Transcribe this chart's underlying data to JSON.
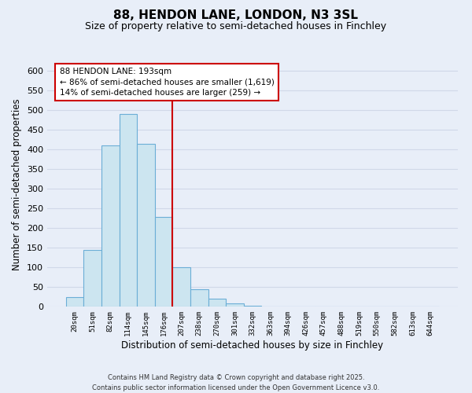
{
  "title": "88, HENDON LANE, LONDON, N3 3SL",
  "subtitle": "Size of property relative to semi-detached houses in Finchley",
  "xlabel": "Distribution of semi-detached houses by size in Finchley",
  "ylabel": "Number of semi-detached properties",
  "bar_labels": [
    "20sqm",
    "51sqm",
    "82sqm",
    "114sqm",
    "145sqm",
    "176sqm",
    "207sqm",
    "238sqm",
    "270sqm",
    "301sqm",
    "332sqm",
    "363sqm",
    "394sqm",
    "426sqm",
    "457sqm",
    "488sqm",
    "519sqm",
    "550sqm",
    "582sqm",
    "613sqm",
    "644sqm"
  ],
  "bar_heights": [
    25,
    145,
    410,
    490,
    415,
    228,
    100,
    45,
    20,
    8,
    2,
    0,
    0,
    0,
    0,
    0,
    0,
    0,
    0,
    0,
    1
  ],
  "bar_color": "#cce5f0",
  "bar_edge_color": "#6baed6",
  "vline_color": "#cc0000",
  "annotation_text": "88 HENDON LANE: 193sqm\n← 86% of semi-detached houses are smaller (1,619)\n14% of semi-detached houses are larger (259) →",
  "annotation_box_color": "#ffffff",
  "annotation_box_edge": "#cc0000",
  "ylim": [
    0,
    620
  ],
  "yticks": [
    0,
    50,
    100,
    150,
    200,
    250,
    300,
    350,
    400,
    450,
    500,
    550,
    600
  ],
  "footer_line1": "Contains HM Land Registry data © Crown copyright and database right 2025.",
  "footer_line2": "Contains public sector information licensed under the Open Government Licence v3.0.",
  "background_color": "#e8eef8",
  "grid_color": "#d0d8e8",
  "title_fontsize": 11,
  "subtitle_fontsize": 9
}
